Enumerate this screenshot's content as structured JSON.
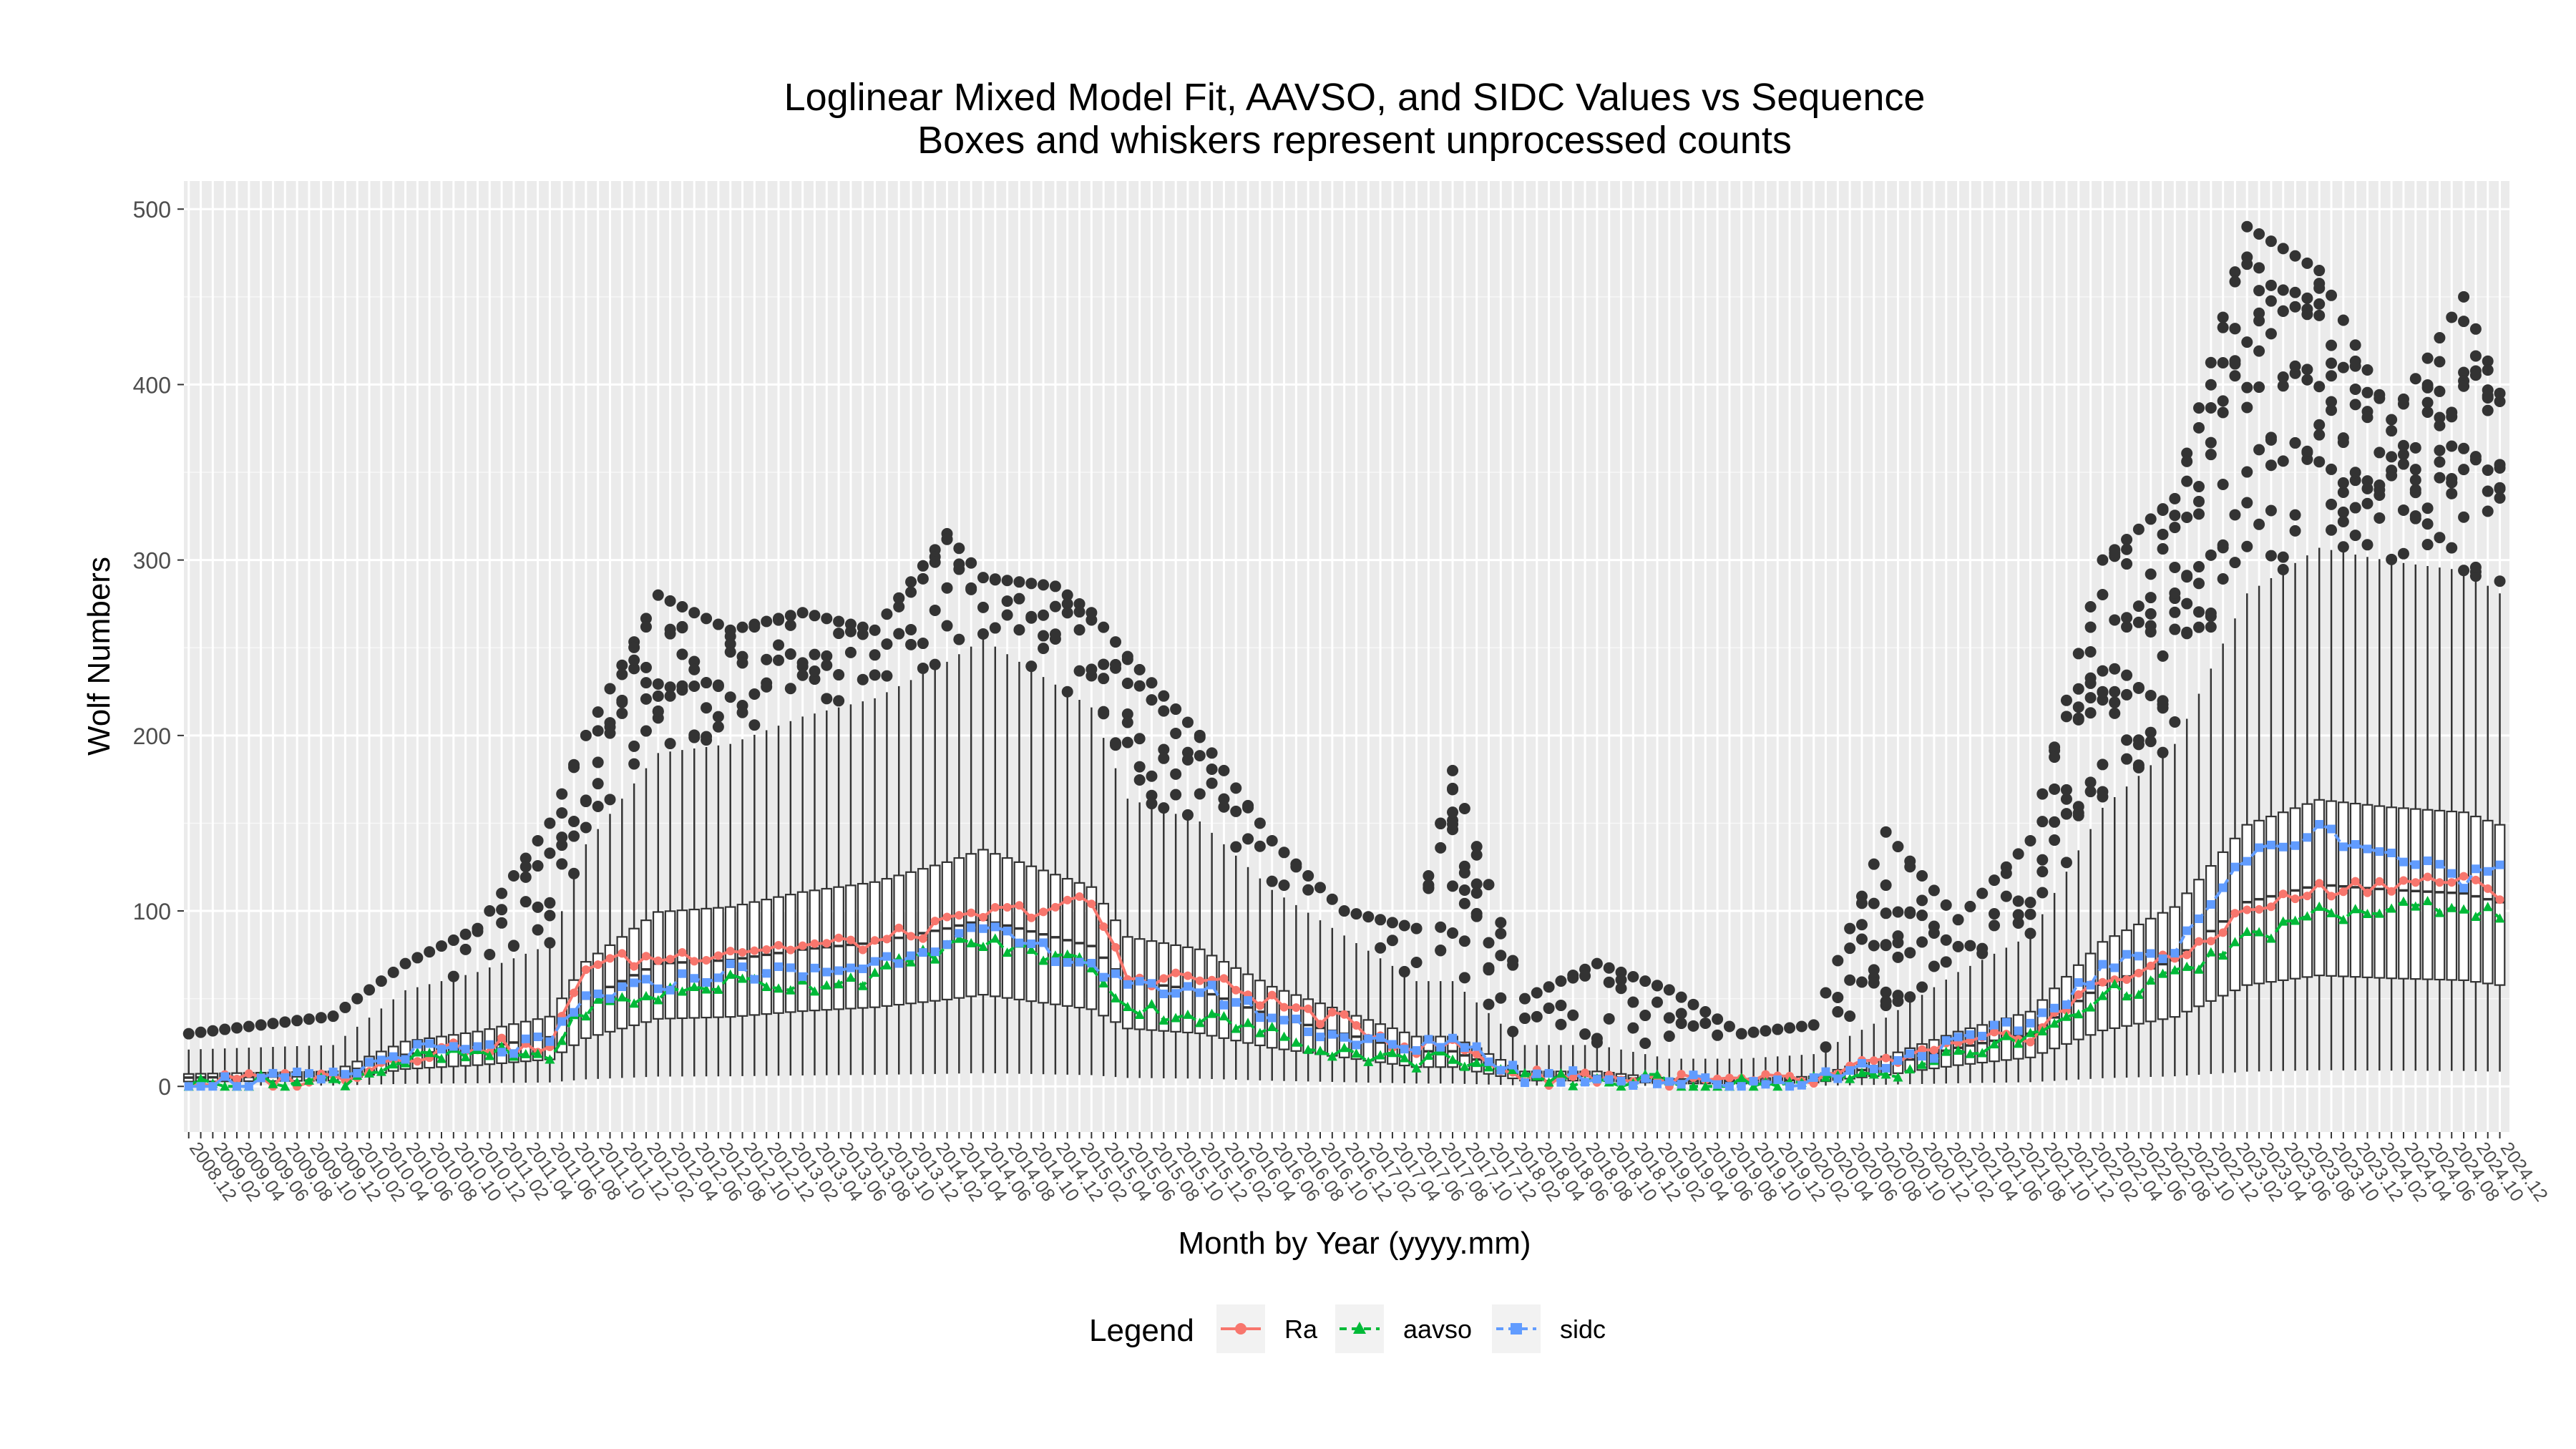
{
  "chart_data": {
    "type": "box",
    "title": "Loglinear Mixed Model Fit, AAVSO, and SIDC Values vs Sequence",
    "subtitle": "Boxes and whiskers represent unprocessed counts",
    "xlabel": "Month by Year (yyyy.mm)",
    "ylabel": "Wolf Numbers",
    "ylim": [
      -26,
      516
    ],
    "yticks": [
      0,
      100,
      200,
      300,
      400,
      500
    ],
    "x_start": "2008.12",
    "x_end": "2024.12",
    "x_label_step_months": 2,
    "grid": true,
    "legend": {
      "title": "Legend",
      "position": "bottom",
      "entries": [
        {
          "name": "Ra",
          "color": "#f8766d",
          "marker": "circle",
          "linetype": "solid"
        },
        {
          "name": "aavso",
          "color": "#00ba38",
          "marker": "triangle",
          "linetype": "dashed"
        },
        {
          "name": "sidc",
          "color": "#619cff",
          "marker": "square",
          "linetype": "dashed"
        }
      ]
    },
    "series": [
      {
        "name": "Ra",
        "anchors": [
          [
            "2008.12",
            2
          ],
          [
            "2009.12",
            5
          ],
          [
            "2010.06",
            18
          ],
          [
            "2010.12",
            24
          ],
          [
            "2011.06",
            20
          ],
          [
            "2011.09",
            70
          ],
          [
            "2012.03",
            73
          ],
          [
            "2012.09",
            78
          ],
          [
            "2013.03",
            80
          ],
          [
            "2013.09",
            82
          ],
          [
            "2014.03",
            92
          ],
          [
            "2014.06",
            98
          ],
          [
            "2014.12",
            102
          ],
          [
            "2015.03",
            105
          ],
          [
            "2015.06",
            62
          ],
          [
            "2015.12",
            62
          ],
          [
            "2016.06",
            48
          ],
          [
            "2016.12",
            36
          ],
          [
            "2017.06",
            22
          ],
          [
            "2017.09",
            24
          ],
          [
            "2018.03",
            5
          ],
          [
            "2018.09",
            6
          ],
          [
            "2019.03",
            3
          ],
          [
            "2019.09",
            2
          ],
          [
            "2020.03",
            3
          ],
          [
            "2020.09",
            14
          ],
          [
            "2021.03",
            22
          ],
          [
            "2021.09",
            30
          ],
          [
            "2022.03",
            60
          ],
          [
            "2022.09",
            72
          ],
          [
            "2023.03",
            100
          ],
          [
            "2023.09",
            112
          ],
          [
            "2024.03",
            116
          ],
          [
            "2024.09",
            118
          ],
          [
            "2024.12",
            105
          ]
        ]
      },
      {
        "name": "aavso",
        "anchors": [
          [
            "2008.12",
            1
          ],
          [
            "2009.12",
            3
          ],
          [
            "2010.06",
            15
          ],
          [
            "2010.12",
            18
          ],
          [
            "2011.06",
            18
          ],
          [
            "2011.09",
            45
          ],
          [
            "2012.03",
            52
          ],
          [
            "2012.09",
            60
          ],
          [
            "2013.03",
            58
          ],
          [
            "2013.09",
            63
          ],
          [
            "2014.03",
            80
          ],
          [
            "2014.06",
            82
          ],
          [
            "2014.12",
            74
          ],
          [
            "2015.03",
            70
          ],
          [
            "2015.06",
            45
          ],
          [
            "2015.12",
            40
          ],
          [
            "2016.06",
            30
          ],
          [
            "2016.12",
            20
          ],
          [
            "2017.06",
            14
          ],
          [
            "2017.09",
            18
          ],
          [
            "2018.03",
            3
          ],
          [
            "2018.09",
            4
          ],
          [
            "2019.03",
            2
          ],
          [
            "2019.09",
            1
          ],
          [
            "2020.03",
            2
          ],
          [
            "2020.09",
            8
          ],
          [
            "2021.03",
            18
          ],
          [
            "2021.09",
            28
          ],
          [
            "2022.03",
            52
          ],
          [
            "2022.09",
            62
          ],
          [
            "2023.03",
            84
          ],
          [
            "2023.09",
            98
          ],
          [
            "2024.03",
            100
          ],
          [
            "2024.09",
            104
          ],
          [
            "2024.12",
            96
          ]
        ]
      },
      {
        "name": "sidc",
        "anchors": [
          [
            "2008.12",
            2
          ],
          [
            "2009.12",
            4
          ],
          [
            "2010.06",
            20
          ],
          [
            "2010.12",
            20
          ],
          [
            "2011.06",
            24
          ],
          [
            "2011.09",
            50
          ],
          [
            "2012.03",
            58
          ],
          [
            "2012.09",
            66
          ],
          [
            "2013.03",
            64
          ],
          [
            "2013.09",
            70
          ],
          [
            "2014.03",
            84
          ],
          [
            "2014.06",
            88
          ],
          [
            "2014.12",
            76
          ],
          [
            "2015.03",
            70
          ],
          [
            "2015.06",
            55
          ],
          [
            "2015.12",
            56
          ],
          [
            "2016.06",
            40
          ],
          [
            "2016.12",
            28
          ],
          [
            "2017.06",
            20
          ],
          [
            "2017.09",
            28
          ],
          [
            "2018.03",
            6
          ],
          [
            "2018.09",
            6
          ],
          [
            "2019.03",
            3
          ],
          [
            "2019.09",
            2
          ],
          [
            "2020.03",
            4
          ],
          [
            "2020.09",
            14
          ],
          [
            "2021.03",
            24
          ],
          [
            "2021.09",
            36
          ],
          [
            "2022.03",
            66
          ],
          [
            "2022.09",
            80
          ],
          [
            "2023.03",
            130
          ],
          [
            "2023.09",
            146
          ],
          [
            "2024.03",
            132
          ],
          [
            "2024.09",
            118
          ],
          [
            "2024.12",
            126
          ]
        ]
      }
    ],
    "box_envelope": {
      "median_anchors": [
        [
          "2008.12",
          5
        ],
        [
          "2009.12",
          6
        ],
        [
          "2010.06",
          18
        ],
        [
          "2010.12",
          22
        ],
        [
          "2011.06",
          28
        ],
        [
          "2011.09",
          50
        ],
        [
          "2012.03",
          70
        ],
        [
          "2012.09",
          72
        ],
        [
          "2013.03",
          78
        ],
        [
          "2013.09",
          82
        ],
        [
          "2014.03",
          90
        ],
        [
          "2014.06",
          95
        ],
        [
          "2014.12",
          85
        ],
        [
          "2015.03",
          80
        ],
        [
          "2015.06",
          60
        ],
        [
          "2015.12",
          55
        ],
        [
          "2016.06",
          40
        ],
        [
          "2016.12",
          30
        ],
        [
          "2017.06",
          20
        ],
        [
          "2017.09",
          20
        ],
        [
          "2018.03",
          6
        ],
        [
          "2018.09",
          6
        ],
        [
          "2019.03",
          3
        ],
        [
          "2019.09",
          3
        ],
        [
          "2020.03",
          4
        ],
        [
          "2020.09",
          12
        ],
        [
          "2021.03",
          22
        ],
        [
          "2021.09",
          30
        ],
        [
          "2022.03",
          58
        ],
        [
          "2022.09",
          72
        ],
        [
          "2023.03",
          105
        ],
        [
          "2023.09",
          115
        ],
        [
          "2024.03",
          112
        ],
        [
          "2024.09",
          110
        ],
        [
          "2024.12",
          105
        ]
      ],
      "outlier_max_anchors": [
        [
          "2008.12",
          30
        ],
        [
          "2009.12",
          40
        ],
        [
          "2010.06",
          70
        ],
        [
          "2010.12",
          90
        ],
        [
          "2011.06",
          150
        ],
        [
          "2011.09",
          200
        ],
        [
          "2012.03",
          280
        ],
        [
          "2012.09",
          260
        ],
        [
          "2013.03",
          270
        ],
        [
          "2013.09",
          260
        ],
        [
          "2014.03",
          315
        ],
        [
          "2014.06",
          290
        ],
        [
          "2014.12",
          285
        ],
        [
          "2015.03",
          270
        ],
        [
          "2015.06",
          245
        ],
        [
          "2015.12",
          200
        ],
        [
          "2016.06",
          140
        ],
        [
          "2016.12",
          100
        ],
        [
          "2017.06",
          90
        ],
        [
          "2017.09",
          180
        ],
        [
          "2018.03",
          50
        ],
        [
          "2018.09",
          70
        ],
        [
          "2019.03",
          55
        ],
        [
          "2019.09",
          30
        ],
        [
          "2020.03",
          35
        ],
        [
          "2020.09",
          145
        ],
        [
          "2021.03",
          95
        ],
        [
          "2021.09",
          140
        ],
        [
          "2022.03",
          300
        ],
        [
          "2022.09",
          335
        ],
        [
          "2023.03",
          490
        ],
        [
          "2023.09",
          465
        ],
        [
          "2024.03",
          380
        ],
        [
          "2024.09",
          450
        ],
        [
          "2024.12",
          395
        ]
      ]
    }
  }
}
